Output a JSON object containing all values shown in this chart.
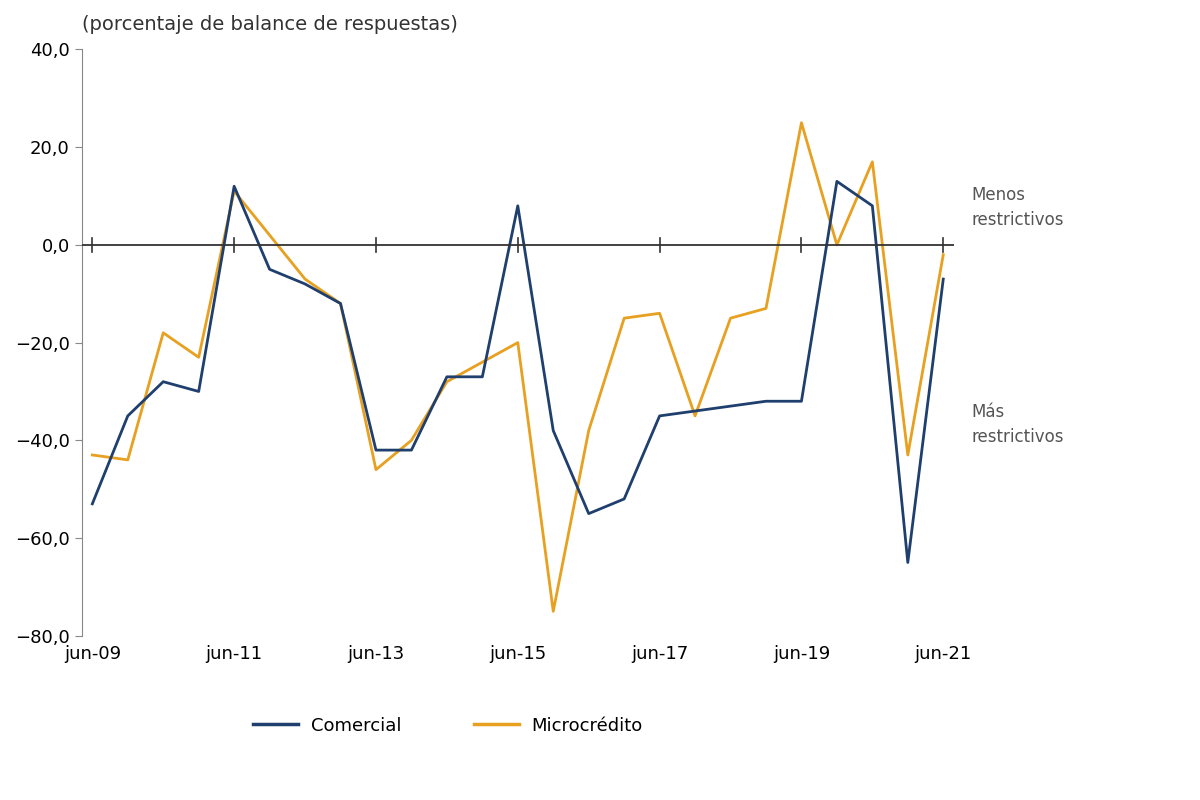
{
  "title": "(porcentaje de balance de respuestas)",
  "ylim": [
    -80,
    40
  ],
  "yticks": [
    -80,
    -60,
    -40,
    -20,
    0,
    20,
    40
  ],
  "background_color": "#ffffff",
  "comercial_color": "#1f3f6e",
  "microcredito_color": "#e8a020",
  "line_width": 2.0,
  "legend_label_comercial": "Comercial",
  "legend_label_microcredito": "Microcrédito",
  "annotation_menos": "Menos\nrestrictivos",
  "annotation_mas": "Más\nrestrictivos",
  "comercial": [
    -53,
    -35,
    -28,
    -30,
    12,
    -5,
    -8,
    -12,
    -42,
    -42,
    -27,
    -27,
    8,
    -38,
    -55,
    -52,
    -35,
    -34,
    -33,
    -32,
    -32,
    13,
    8,
    -65,
    -7
  ],
  "microcredito": [
    -43,
    -44,
    -18,
    -23,
    11,
    2,
    -7,
    -12,
    -46,
    -40,
    -28,
    -24,
    -20,
    -75,
    -38,
    -15,
    -14,
    -35,
    -15,
    -13,
    25,
    0,
    17,
    -43,
    -2
  ],
  "xtick_labels": [
    "jun-09",
    "jun-11",
    "jun-13",
    "jun-15",
    "jun-17",
    "jun-19",
    "jun-21"
  ],
  "xtick_positions": [
    0,
    4,
    8,
    12,
    16,
    20,
    24
  ]
}
